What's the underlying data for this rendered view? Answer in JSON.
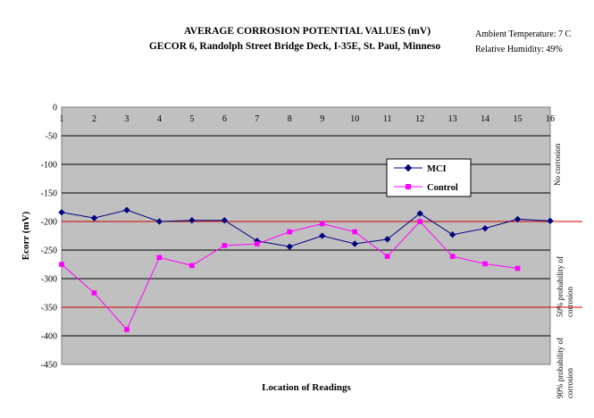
{
  "chart_data": {
    "type": "line",
    "title": "AVERAGE CORROSION POTENTIAL VALUES (mV)",
    "subtitle": "GECOR 6, Randolph Street Bridge Deck, I-35E, St. Paul, Minneso",
    "conditions": [
      "Ambient Temperature: 7 C",
      "Relative Humidity: 49%"
    ],
    "xlabel": "Location of Readings",
    "ylabel": "Ecorr (mV)",
    "x": [
      1,
      2,
      3,
      4,
      5,
      6,
      7,
      8,
      9,
      10,
      11,
      12,
      13,
      14,
      15,
      16
    ],
    "x_tick_labels": [
      "1",
      "2",
      "3",
      "4",
      "5",
      "6",
      "7",
      "8",
      "9",
      "10",
      "11",
      "12",
      "13",
      "14",
      "15",
      "16"
    ],
    "ylim": [
      -450,
      0
    ],
    "y_ticks": [
      0,
      -50,
      -100,
      -150,
      -200,
      -250,
      -300,
      -350,
      -400,
      -450
    ],
    "grid": true,
    "legend": "upper-right inside plot",
    "series": [
      {
        "name": "MCI",
        "color": "#000080",
        "marker": "diamond",
        "values": [
          -184,
          -194,
          -180,
          -200,
          -198,
          -198,
          -234,
          -244,
          -225,
          -239,
          -231,
          -186,
          -223,
          -212,
          -196,
          -199
        ]
      },
      {
        "name": "Control",
        "color": "#ff00ff",
        "marker": "square",
        "values": [
          -275,
          -325,
          -389,
          -263,
          -277,
          -242,
          -239,
          -218,
          -204,
          -218,
          -261,
          -200,
          -261,
          -274,
          -282,
          null
        ]
      }
    ],
    "reference_lines": [
      {
        "value": -200,
        "color": "#cc0000"
      },
      {
        "value": -350,
        "color": "#cc0000"
      }
    ],
    "zone_labels": [
      [
        "No corrosion"
      ],
      [
        "50% probability of",
        "corrosion"
      ],
      [
        "90% probability of",
        "corrosion"
      ]
    ]
  }
}
